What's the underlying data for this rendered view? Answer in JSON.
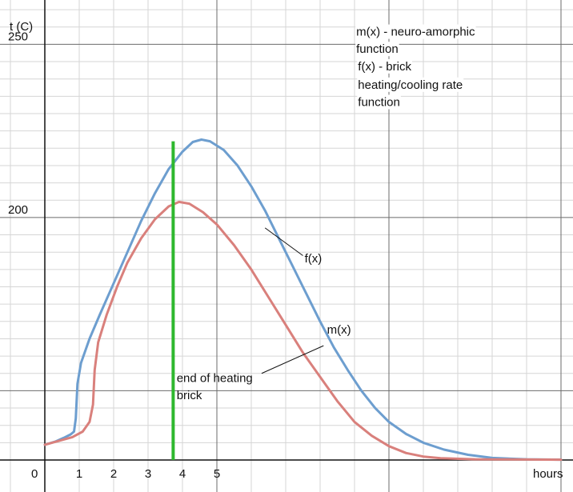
{
  "chart_data": {
    "type": "line",
    "title": "",
    "ylabel": "t (C)",
    "xlabel": "hours",
    "origin_label": "0",
    "x_tick_labels": [
      {
        "x": 1,
        "label": "1"
      },
      {
        "x": 2,
        "label": "2"
      },
      {
        "x": 3,
        "label": "3"
      },
      {
        "x": 4,
        "label": "4"
      },
      {
        "x": 5,
        "label": "5"
      }
    ],
    "y_tick_labels": [
      {
        "y": 200,
        "label": "200"
      },
      {
        "y": 250,
        "label": "250"
      }
    ],
    "xlim": [
      -1.3,
      15.1
    ],
    "ylim": [
      130,
      260
    ],
    "grid": true,
    "series": [
      {
        "name": "f(x)",
        "color": "#6d9ecf",
        "points": [
          [
            0,
            134.4
          ],
          [
            0.3,
            135.3
          ],
          [
            0.55,
            136.4
          ],
          [
            0.75,
            137.4
          ],
          [
            0.85,
            138.2
          ],
          [
            0.9,
            142
          ],
          [
            0.95,
            152
          ],
          [
            1.05,
            158
          ],
          [
            1.3,
            165
          ],
          [
            1.6,
            172
          ],
          [
            2.0,
            181
          ],
          [
            2.4,
            190
          ],
          [
            2.8,
            199
          ],
          [
            3.2,
            207
          ],
          [
            3.6,
            214
          ],
          [
            4.0,
            219
          ],
          [
            4.3,
            221.8
          ],
          [
            4.55,
            222.5
          ],
          [
            4.8,
            222
          ],
          [
            5.2,
            219.5
          ],
          [
            5.6,
            215
          ],
          [
            6.0,
            209
          ],
          [
            6.4,
            202
          ],
          [
            6.8,
            194
          ],
          [
            7.2,
            186
          ],
          [
            7.6,
            178
          ],
          [
            8.0,
            170
          ],
          [
            8.4,
            162.5
          ],
          [
            8.8,
            156
          ],
          [
            9.2,
            150
          ],
          [
            9.6,
            145
          ],
          [
            10.0,
            141
          ],
          [
            10.5,
            137.5
          ],
          [
            11.0,
            135
          ],
          [
            11.6,
            133
          ],
          [
            12.3,
            131.5
          ],
          [
            13.0,
            130.6
          ],
          [
            14.0,
            130.2
          ],
          [
            15.0,
            130.1
          ]
        ]
      },
      {
        "name": "m(x)",
        "color": "#d9807c",
        "points": [
          [
            0,
            134.4
          ],
          [
            0.4,
            135.5
          ],
          [
            0.8,
            136.6
          ],
          [
            1.1,
            138.2
          ],
          [
            1.3,
            141
          ],
          [
            1.4,
            146
          ],
          [
            1.45,
            156
          ],
          [
            1.55,
            164
          ],
          [
            1.8,
            172
          ],
          [
            2.1,
            180
          ],
          [
            2.4,
            187
          ],
          [
            2.8,
            194
          ],
          [
            3.2,
            199.5
          ],
          [
            3.6,
            203.2
          ],
          [
            3.9,
            204.5
          ],
          [
            4.2,
            204
          ],
          [
            4.6,
            201.5
          ],
          [
            5.0,
            198
          ],
          [
            5.5,
            192
          ],
          [
            6.0,
            185
          ],
          [
            6.5,
            177
          ],
          [
            7.0,
            169
          ],
          [
            7.5,
            161
          ],
          [
            8.0,
            154
          ],
          [
            8.5,
            147
          ],
          [
            9.0,
            141
          ],
          [
            9.5,
            137
          ],
          [
            10.0,
            134
          ],
          [
            10.5,
            132
          ],
          [
            11.0,
            131
          ],
          [
            11.5,
            130.5
          ],
          [
            12.5,
            130.2
          ],
          [
            15.0,
            130.1
          ]
        ]
      }
    ],
    "marker_line": {
      "x": 3.73,
      "y_from": 130,
      "y_to": 222,
      "color": "#2eb82e"
    },
    "annotations": [
      {
        "text": "f(x)",
        "x": 7.55,
        "y": 187,
        "leader_from": [
          6.4,
          197
        ],
        "leader_to": [
          7.5,
          189
        ]
      },
      {
        "text": "m(x)",
        "x": 8.2,
        "y": 166.5,
        "leader_from": [
          6.3,
          155
        ],
        "leader_to": [
          8.1,
          163
        ]
      },
      {
        "text": "end of heating",
        "x": 3.83,
        "y": 152.5
      },
      {
        "text": "brick",
        "x": 3.83,
        "y": 147.5
      }
    ],
    "legend_text": [
      {
        "text": "m(x) - neuro-amorphic",
        "x": 9.05,
        "y": 252.5
      },
      {
        "text": "function",
        "x": 9.05,
        "y": 247.5
      },
      {
        "text": "f(x) - brick",
        "x": 9.1,
        "y": 242.5
      },
      {
        "text": "heating/cooling rate",
        "x": 9.1,
        "y": 237.2
      },
      {
        "text": "function",
        "x": 9.1,
        "y": 232.2
      }
    ]
  }
}
